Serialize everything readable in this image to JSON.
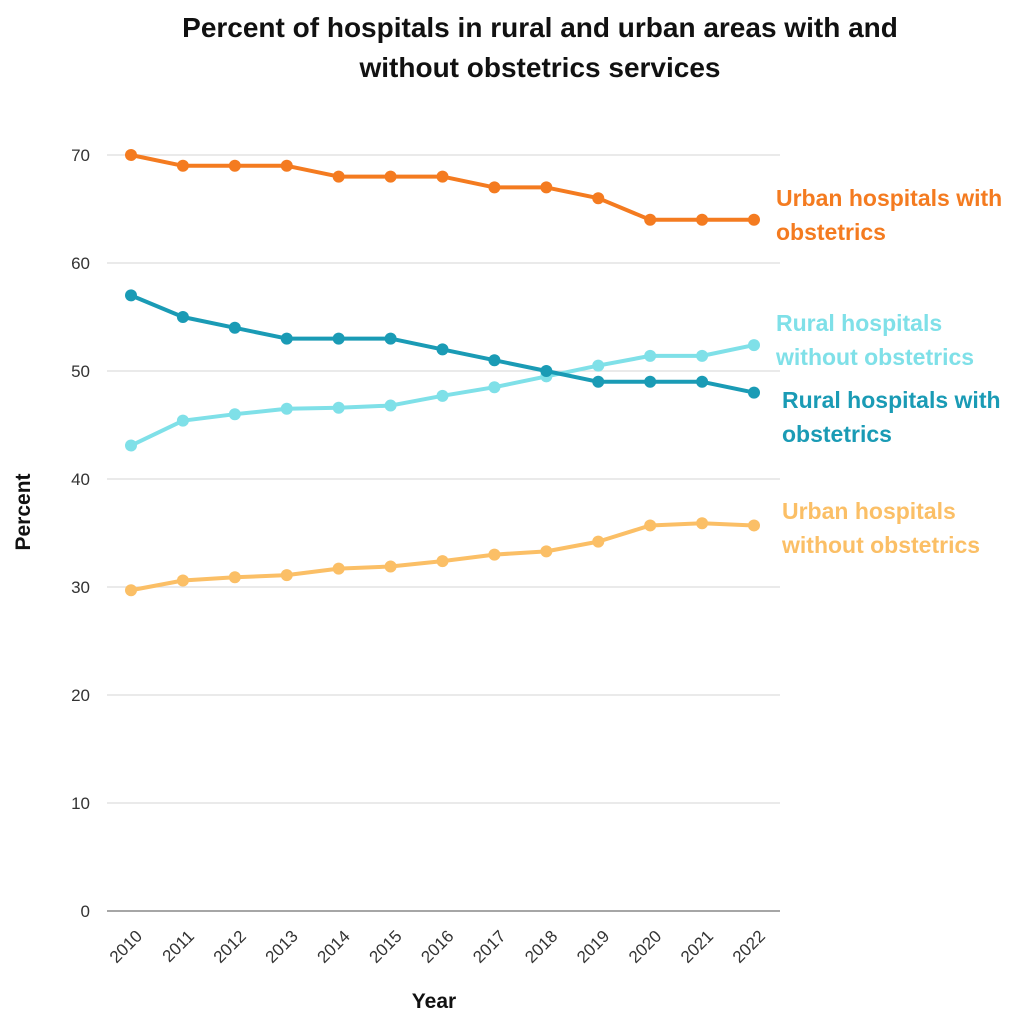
{
  "chart_data": {
    "type": "line",
    "title": "Percent of hospitals in rural and urban areas with and without obstetrics services",
    "x_label": "Year",
    "y_label": "Percent",
    "categories": [
      "2010",
      "2011",
      "2012",
      "2013",
      "2014",
      "2015",
      "2016",
      "2017",
      "2018",
      "2019",
      "2020",
      "2021",
      "2022"
    ],
    "series": [
      {
        "name": "Urban hospitals with obstetrics",
        "color": "#f47b20",
        "values": [
          70,
          69,
          69,
          69,
          68,
          68,
          68,
          67,
          67,
          66,
          64,
          64,
          64
        ]
      },
      {
        "name": "Rural hospitals without obstetrics",
        "color": "#7fe0e8",
        "values": [
          43.1,
          45.4,
          46,
          46.5,
          46.6,
          46.8,
          47.7,
          48.5,
          49.5,
          50.5,
          51.4,
          51.4,
          52.4
        ]
      },
      {
        "name": "Rural hospitals with obstetrics",
        "color": "#1a9bb5",
        "values": [
          57,
          55,
          54,
          53,
          53,
          53,
          52,
          51,
          50,
          49,
          49,
          49,
          48
        ]
      },
      {
        "name": "Urban hospitals without obstetrics",
        "color": "#fbbf66",
        "values": [
          29.7,
          30.6,
          30.9,
          31.1,
          31.7,
          31.9,
          32.4,
          33.0,
          33.3,
          34.2,
          35.7,
          35.9,
          35.7
        ]
      }
    ],
    "ylim": [
      0,
      70
    ],
    "yticks": [
      0,
      10,
      20,
      30,
      40,
      50,
      60,
      70
    ],
    "grid": true
  }
}
